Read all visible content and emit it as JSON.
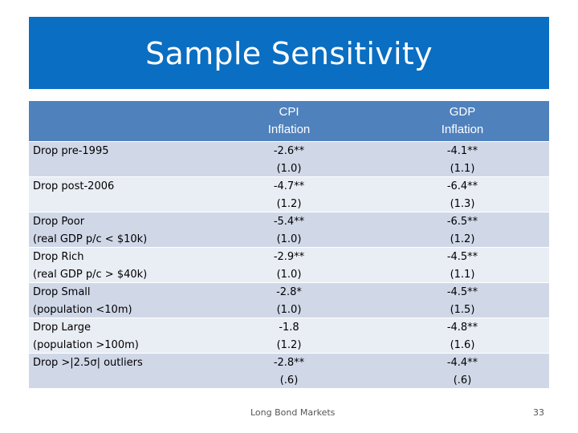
{
  "slide": {
    "title": "Sample Sensitivity",
    "footer_text": "Long Bond Markets",
    "page_number": "33"
  },
  "table": {
    "headers": [
      {
        "line1": "CPI",
        "line2": "Inflation"
      },
      {
        "line1": "GDP",
        "line2": "Inflation"
      }
    ],
    "rows": [
      {
        "label1": "Drop pre-1995",
        "label2": "",
        "cpi": "-2.6**",
        "cpi_se": "(1.0)",
        "gdp": "-4.1**",
        "gdp_se": "(1.1)"
      },
      {
        "label1": "Drop post-2006",
        "label2": "",
        "cpi": "-4.7**",
        "cpi_se": "(1.2)",
        "gdp": "-6.4**",
        "gdp_se": "(1.3)"
      },
      {
        "label1": "Drop Poor",
        "label2": "(real GDP p/c < $10k)",
        "cpi": "-5.4**",
        "cpi_se": "(1.0)",
        "gdp": "-6.5**",
        "gdp_se": "(1.2)"
      },
      {
        "label1": "Drop Rich",
        "label2": "(real GDP p/c > $40k)",
        "cpi": "-2.9**",
        "cpi_se": "(1.0)",
        "gdp": "-4.5**",
        "gdp_se": "(1.1)"
      },
      {
        "label1": "Drop Small",
        "label2": "(population <10m)",
        "cpi": "-2.8*",
        "cpi_se": "(1.0)",
        "gdp": "-4.5**",
        "gdp_se": "(1.5)"
      },
      {
        "label1": "Drop Large",
        "label2": "(population >100m)",
        "cpi": "-1.8",
        "cpi_se": "(1.2)",
        "gdp": "-4.8**",
        "gdp_se": "(1.6)"
      },
      {
        "label1": "Drop >|2.5σ| outliers",
        "label2": "",
        "cpi": "-2.8**",
        "cpi_se": "(.6)",
        "gdp": "-4.4**",
        "gdp_se": "(.6)"
      }
    ]
  },
  "colors": {
    "title_bar": "#0A6EC2",
    "header_bg": "#4F81BD",
    "row_even": "#D0D8E8",
    "row_odd": "#E9EDF4"
  }
}
